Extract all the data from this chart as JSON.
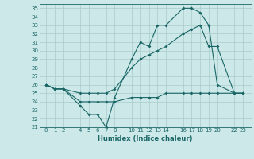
{
  "xlabel": "Humidex (Indice chaleur)",
  "background_color": "#cce8e8",
  "grid_color": "#aacccc",
  "line_color": "#1a6666",
  "ylim": [
    21,
    35.5
  ],
  "yticks": [
    21,
    22,
    23,
    24,
    25,
    26,
    27,
    28,
    29,
    30,
    31,
    32,
    33,
    34,
    35
  ],
  "xticks": [
    0,
    1,
    2,
    4,
    5,
    6,
    7,
    8,
    10,
    11,
    12,
    13,
    14,
    16,
    17,
    18,
    19,
    20,
    22,
    23
  ],
  "xlim": [
    -0.8,
    24.0
  ],
  "line1_x": [
    0,
    1,
    2,
    4,
    5,
    6,
    7,
    8,
    10,
    11,
    12,
    13,
    14,
    16,
    17,
    18,
    19,
    20,
    22,
    23
  ],
  "line1_y": [
    26.0,
    25.5,
    25.5,
    23.5,
    22.5,
    22.5,
    21.0,
    24.5,
    29.0,
    31.0,
    30.5,
    33.0,
    33.0,
    35.0,
    35.0,
    34.5,
    33.0,
    26.0,
    25.0,
    25.0
  ],
  "line2_x": [
    0,
    1,
    2,
    4,
    5,
    6,
    7,
    8,
    10,
    11,
    12,
    13,
    14,
    16,
    17,
    18,
    19,
    20,
    22,
    23
  ],
  "line2_y": [
    26.0,
    25.5,
    25.5,
    25.0,
    25.0,
    25.0,
    25.0,
    25.5,
    28.0,
    29.0,
    29.5,
    30.0,
    30.5,
    32.0,
    32.5,
    33.0,
    30.5,
    30.5,
    25.0,
    25.0
  ],
  "line3_x": [
    0,
    1,
    2,
    4,
    5,
    6,
    7,
    8,
    10,
    11,
    12,
    13,
    14,
    16,
    17,
    18,
    19,
    20,
    22,
    23
  ],
  "line3_y": [
    26.0,
    25.5,
    25.5,
    24.0,
    24.0,
    24.0,
    24.0,
    24.0,
    24.5,
    24.5,
    24.5,
    24.5,
    25.0,
    25.0,
    25.0,
    25.0,
    25.0,
    25.0,
    25.0,
    25.0
  ],
  "label_fontsize": 5.0,
  "xlabel_fontsize": 6.0
}
